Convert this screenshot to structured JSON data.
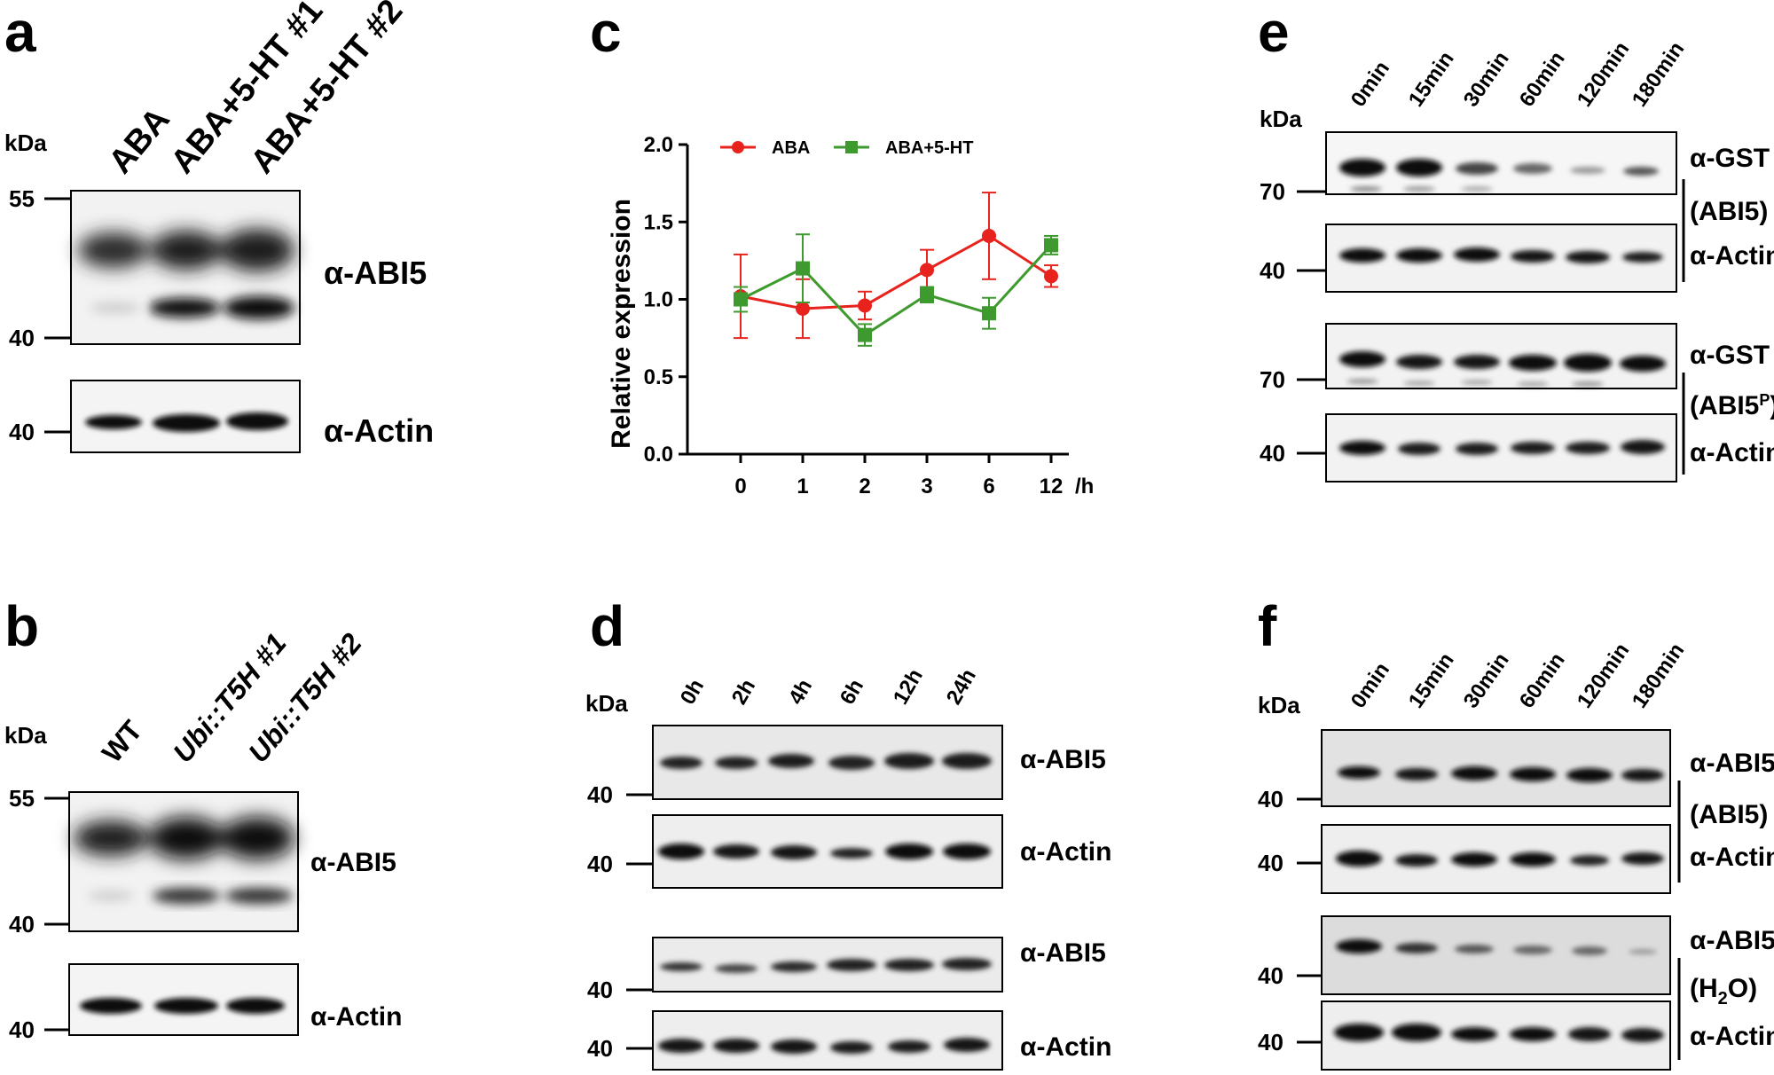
{
  "panels": {
    "a": {
      "letter": "a",
      "kda": "kDa",
      "lanes": [
        "ABA",
        "ABA+5-HT #1",
        "ABA+5-HT #2"
      ],
      "blot1": {
        "antibody": "α-ABI5",
        "markers": [
          "55",
          "40"
        ]
      },
      "blot2": {
        "antibody": "α-Actin",
        "markers": [
          "40"
        ]
      }
    },
    "b": {
      "letter": "b",
      "kda": "kDa",
      "lanes": [
        "WT",
        "Ubi::T5H #1",
        "Ubi::T5H #2"
      ],
      "blot1": {
        "antibody": "α-ABI5",
        "markers": [
          "55",
          "40"
        ]
      },
      "blot2": {
        "antibody": "α-Actin",
        "markers": [
          "40"
        ]
      }
    },
    "c": {
      "letter": "c",
      "chart_data": {
        "type": "line",
        "categories": [
          "0",
          "1",
          "2",
          "3",
          "6",
          "12"
        ],
        "x_unit": "/h",
        "ylabel": "Relative expression",
        "ylim": [
          0,
          2.0
        ],
        "yticks": [
          "0.0",
          "0.5",
          "1.0",
          "1.5",
          "2.0"
        ],
        "legend_position": "top",
        "series": [
          {
            "name": "ABA",
            "color": "#e8231d",
            "marker": "circle",
            "values": [
              1.02,
              0.94,
              0.96,
              1.19,
              1.41,
              1.15
            ],
            "errors": [
              0.27,
              0.19,
              0.09,
              0.13,
              0.28,
              0.07
            ]
          },
          {
            "name": "ABA+5-HT",
            "color": "#3e9a2e",
            "marker": "square",
            "values": [
              1.0,
              1.2,
              0.77,
              1.03,
              0.91,
              1.35
            ],
            "errors": [
              0.08,
              0.22,
              0.07,
              0.05,
              0.1,
              0.06
            ]
          }
        ]
      }
    },
    "d": {
      "letter": "d",
      "kda": "kDa",
      "lanes": [
        "0h",
        "2h",
        "4h",
        "6h",
        "12h",
        "24h"
      ],
      "blots": [
        {
          "antibody": "α-ABI5",
          "marker": "40"
        },
        {
          "antibody": "α-Actin",
          "marker": "40"
        },
        {
          "antibody": "α-ABI5",
          "marker": "40"
        },
        {
          "antibody": "α-Actin",
          "marker": "40"
        }
      ]
    },
    "e": {
      "letter": "e",
      "kda": "kDa",
      "lanes": [
        "0min",
        "15min",
        "30min",
        "60min",
        "120min",
        "180min"
      ],
      "blots": [
        {
          "antibody": "α-GST",
          "marker": "70"
        },
        {
          "antibody": "α-Actin",
          "marker": "40"
        },
        {
          "antibody": "α-GST",
          "marker": "70"
        },
        {
          "antibody": "α-Actin",
          "marker": "40"
        }
      ],
      "group1": "(ABI5)",
      "group2_base": "(ABI5",
      "group2_sup": "P",
      "group2_end": ")"
    },
    "f": {
      "letter": "f",
      "kda": "kDa",
      "lanes": [
        "0min",
        "15min",
        "30min",
        "60min",
        "120min",
        "180min"
      ],
      "blots": [
        {
          "antibody": "α-ABI5",
          "marker": "40"
        },
        {
          "antibody": "α-Actin",
          "marker": "40"
        },
        {
          "antibody": "α-ABI5",
          "marker": "40"
        },
        {
          "antibody": "α-Actin",
          "marker": "40"
        }
      ],
      "group1": "(ABI5)",
      "group2_base": "(H",
      "group2_sub": "2",
      "group2_end": "O)"
    }
  }
}
